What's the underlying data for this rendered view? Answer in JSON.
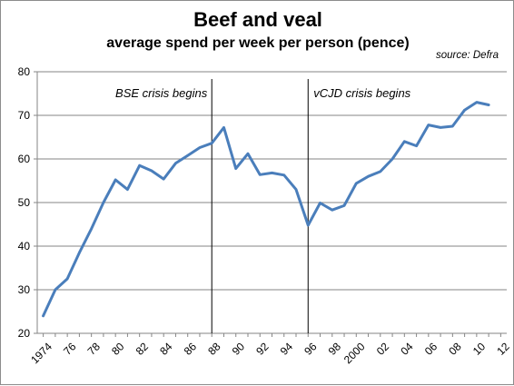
{
  "chart_data": {
    "type": "line",
    "title": "Beef and veal",
    "subtitle": "average spend per week per person (pence)",
    "source": "source: Defra",
    "xlabel": "",
    "ylabel": "",
    "ylim": [
      20,
      80
    ],
    "yticks": [
      20,
      30,
      40,
      50,
      60,
      70,
      80
    ],
    "xticks": [
      {
        "year": 1974,
        "label": "1974"
      },
      {
        "year": 1976,
        "label": "76"
      },
      {
        "year": 1978,
        "label": "78"
      },
      {
        "year": 1980,
        "label": "80"
      },
      {
        "year": 1982,
        "label": "82"
      },
      {
        "year": 1984,
        "label": "84"
      },
      {
        "year": 1986,
        "label": "86"
      },
      {
        "year": 1988,
        "label": "88"
      },
      {
        "year": 1990,
        "label": "90"
      },
      {
        "year": 1992,
        "label": "92"
      },
      {
        "year": 1994,
        "label": "94"
      },
      {
        "year": 1996,
        "label": "96"
      },
      {
        "year": 1998,
        "label": "98"
      },
      {
        "year": 2000,
        "label": "2000"
      },
      {
        "year": 2002,
        "label": "02"
      },
      {
        "year": 2004,
        "label": "04"
      },
      {
        "year": 2006,
        "label": "06"
      },
      {
        "year": 2008,
        "label": "08"
      },
      {
        "year": 2010,
        "label": "10"
      },
      {
        "year": 2012,
        "label": "12"
      }
    ],
    "grid": true,
    "line_color": "#4a7ebb",
    "series": [
      {
        "x": [
          1974,
          1975,
          1976,
          1977,
          1978,
          1979,
          1980,
          1981,
          1982,
          1983,
          1984,
          1985,
          1986,
          1987,
          1988,
          1989,
          1990,
          1991,
          1992,
          1993,
          1994,
          1995,
          1996,
          1997,
          1998,
          1999,
          2000,
          2001,
          2002,
          2003,
          2004,
          2005,
          2006,
          2007,
          2008,
          2009,
          2010,
          2011
        ],
        "values": [
          24.0,
          30.0,
          32.5,
          38.5,
          44.0,
          50.0,
          55.2,
          53.0,
          58.5,
          57.3,
          55.4,
          59.0,
          60.8,
          62.6,
          63.6,
          67.2,
          57.8,
          61.2,
          56.4,
          56.8,
          56.3,
          53.0,
          44.8,
          49.9,
          48.3,
          49.3,
          54.4,
          56.0,
          57.1,
          60.0,
          64.0,
          63.0,
          67.8,
          67.2,
          67.5,
          71.2,
          73.0,
          72.4
        ]
      }
    ],
    "annotations": [
      {
        "x": 1988,
        "text": "BSE crisis begins"
      },
      {
        "x": 1996,
        "text": "vCJD crisis begins"
      }
    ]
  }
}
